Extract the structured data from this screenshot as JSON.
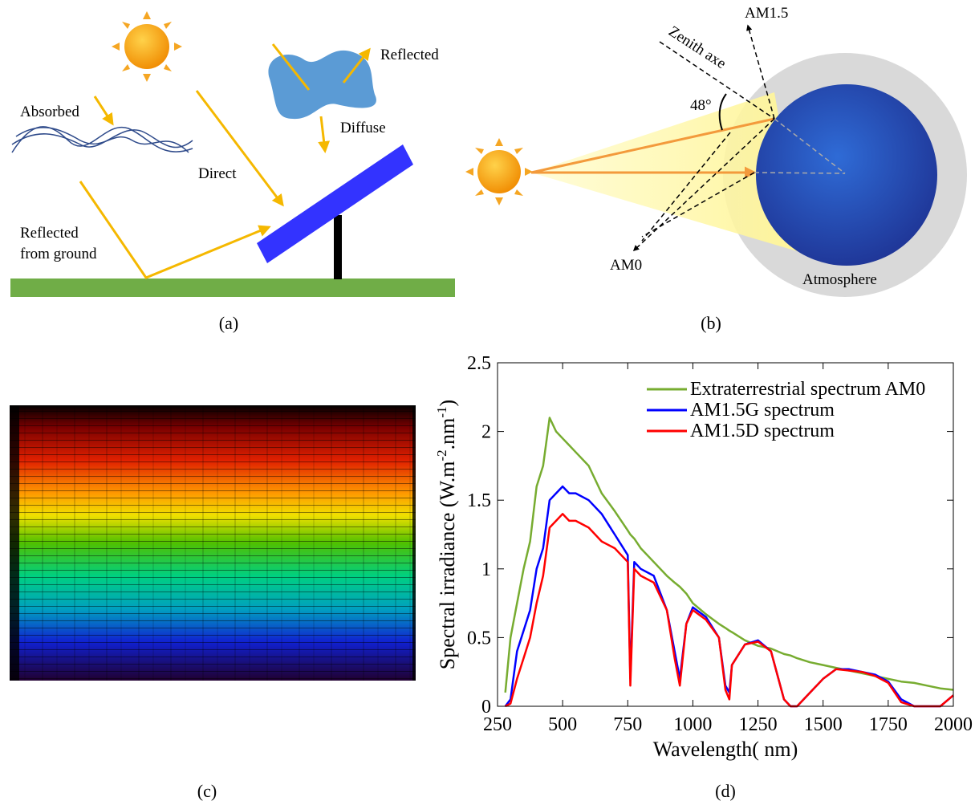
{
  "panels": {
    "a": {
      "absorbed": "Absorbed",
      "direct": "Direct",
      "reflected": "Reflected",
      "diffuse": "Diffuse",
      "reflected_ground": [
        "Reflected",
        "from ground"
      ],
      "caption": "(a)"
    },
    "b": {
      "am15": "AM1.5",
      "zenith": "Zenith axe",
      "angle": "48°",
      "am0": "AM0",
      "atmosphere": "Atmosphere",
      "caption": "(b)"
    },
    "c": {
      "caption": "(c)"
    },
    "d": {
      "caption": "(d)"
    }
  },
  "chart_data": {
    "type": "line",
    "x_label": "Wavelength( nm)",
    "y_label": [
      "Spectral irradiance (W.m",
      "-2",
      ".nm",
      "-1",
      ")"
    ],
    "xlim": [
      250,
      2000
    ],
    "xticks": [
      250,
      500,
      750,
      1000,
      1250,
      1500,
      1750,
      2000
    ],
    "ylim": [
      0,
      2.5
    ],
    "yticks": [
      0,
      0.5,
      1,
      1.5,
      2,
      2.5
    ],
    "legend": "upper right",
    "grid": false,
    "x": [
      280,
      300,
      325,
      350,
      375,
      400,
      425,
      450,
      475,
      500,
      525,
      550,
      600,
      650,
      700,
      750,
      760,
      775,
      800,
      850,
      900,
      930,
      950,
      975,
      1000,
      1050,
      1100,
      1125,
      1140,
      1150,
      1200,
      1250,
      1300,
      1350,
      1375,
      1400,
      1450,
      1500,
      1550,
      1600,
      1650,
      1700,
      1750,
      1800,
      1850,
      1900,
      1950,
      2000
    ],
    "series": [
      {
        "name": "Extraterrestrial spectrum AM0",
        "color": "#77ac30",
        "values": [
          0.1,
          0.5,
          0.75,
          1.0,
          1.2,
          1.6,
          1.75,
          2.1,
          2.0,
          1.95,
          1.9,
          1.85,
          1.75,
          1.55,
          1.42,
          1.28,
          1.25,
          1.22,
          1.15,
          1.05,
          0.95,
          0.9,
          0.87,
          0.82,
          0.75,
          0.67,
          0.6,
          0.57,
          0.55,
          0.54,
          0.48,
          0.44,
          0.42,
          0.38,
          0.37,
          0.35,
          0.32,
          0.3,
          0.28,
          0.26,
          0.24,
          0.22,
          0.2,
          0.18,
          0.17,
          0.15,
          0.13,
          0.12
        ]
      },
      {
        "name": "AM1.5G spectrum",
        "color": "#0000ff",
        "values": [
          0,
          0.05,
          0.4,
          0.55,
          0.7,
          1.0,
          1.15,
          1.5,
          1.55,
          1.6,
          1.55,
          1.55,
          1.5,
          1.4,
          1.25,
          1.1,
          0.2,
          1.05,
          1.0,
          0.95,
          0.7,
          0.4,
          0.2,
          0.6,
          0.72,
          0.65,
          0.5,
          0.15,
          0.1,
          0.3,
          0.45,
          0.48,
          0.4,
          0.05,
          0,
          0,
          0.1,
          0.2,
          0.27,
          0.27,
          0.25,
          0.23,
          0.18,
          0.05,
          0,
          0,
          0,
          0.08
        ]
      },
      {
        "name": "AM1.5D spectrum",
        "color": "#ff0000",
        "values": [
          0,
          0.02,
          0.2,
          0.35,
          0.5,
          0.75,
          0.95,
          1.3,
          1.35,
          1.4,
          1.35,
          1.35,
          1.3,
          1.2,
          1.15,
          1.05,
          0.15,
          1.0,
          0.95,
          0.9,
          0.7,
          0.35,
          0.15,
          0.6,
          0.7,
          0.63,
          0.5,
          0.12,
          0.05,
          0.3,
          0.45,
          0.47,
          0.4,
          0.05,
          0,
          0,
          0.1,
          0.2,
          0.27,
          0.26,
          0.25,
          0.22,
          0.17,
          0.03,
          0,
          0,
          0,
          0.08
        ]
      }
    ]
  }
}
